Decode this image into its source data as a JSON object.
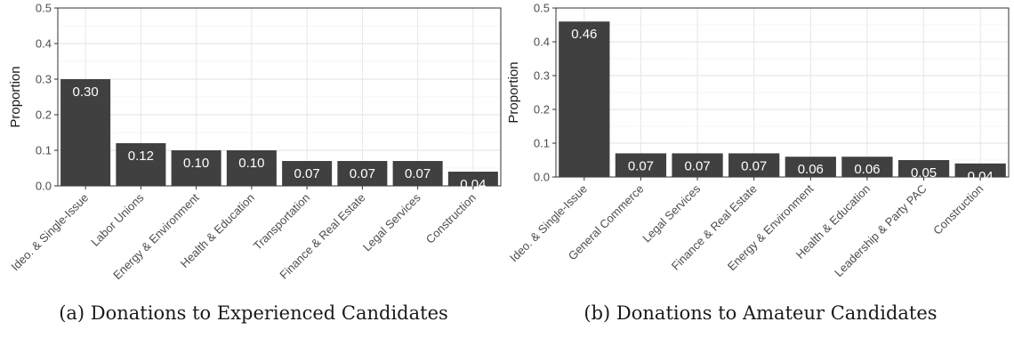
{
  "chart_data": [
    {
      "type": "bar",
      "caption": "(a) Donations to Experienced Candidates",
      "ylabel": "Proportion",
      "xlabel": "",
      "ylim": [
        0,
        0.5
      ],
      "yticks": [
        "0.0",
        "0.1",
        "0.2",
        "0.3",
        "0.4",
        "0.5"
      ],
      "grid": true,
      "categories": [
        "Ideo. & Single-Issue",
        "Labor Unions",
        "Energy & Environment",
        "Health & Education",
        "Transportation",
        "Finance & Real Estate",
        "Legal Services",
        "Construction"
      ],
      "values": [
        0.3,
        0.12,
        0.1,
        0.1,
        0.07,
        0.07,
        0.07,
        0.04
      ],
      "labels": [
        "0.30",
        "0.12",
        "0.10",
        "0.10",
        "0.07",
        "0.07",
        "0.07",
        "0.04"
      ],
      "bar_color": "#404040"
    },
    {
      "type": "bar",
      "caption": "(b) Donations to Amateur Candidates",
      "ylabel": "Proportion",
      "xlabel": "",
      "ylim": [
        0,
        0.5
      ],
      "yticks": [
        "0.0",
        "0.1",
        "0.2",
        "0.3",
        "0.4",
        "0.5"
      ],
      "grid": true,
      "categories": [
        "Ideo. & Single-Issue",
        "General Commerce",
        "Legal Services",
        "Finance & Real Estate",
        "Energy & Environment",
        "Health & Education",
        "Leadership & Party PAC",
        "Construction"
      ],
      "values": [
        0.46,
        0.07,
        0.07,
        0.07,
        0.06,
        0.06,
        0.05,
        0.04
      ],
      "labels": [
        "0.46",
        "0.07",
        "0.07",
        "0.07",
        "0.06",
        "0.06",
        "0.05",
        "0.04"
      ],
      "bar_color": "#404040"
    }
  ]
}
